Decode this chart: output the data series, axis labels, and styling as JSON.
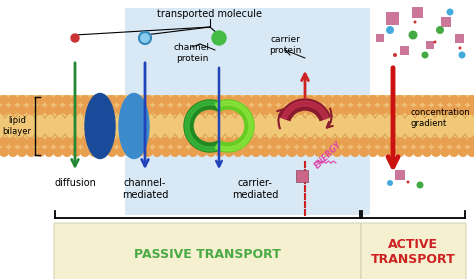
{
  "bg_color": "#ffffff",
  "passive_bg": "#c8dff0",
  "passive_box_color": "#f5f0d0",
  "active_box_color": "#f5f0d0",
  "passive_text_color": "#4aaa44",
  "active_text_color": "#cc2222",
  "membrane_tan": "#f0c07a",
  "membrane_orange": "#e89040",
  "membrane_mid": "#f5d090",
  "lipid_bilayer_label": "lipid\nbilayer",
  "transported_molecule_label": "transported molecule",
  "channel_protein_label": "channel\nprotein",
  "carrier_protein_label": "carrier\nprotein",
  "diffusion_label": "diffusion",
  "channel_mediated_label": "channel-\nmediated",
  "carrier_mediated_label": "carrier-\nmediated",
  "concentration_gradient_label": "concentration\ngradient",
  "energy_label": "ENERGY",
  "passive_transport_label": "PASSIVE TRANSPORT",
  "active_transport_label": "ACTIVE\nTRANSPORT",
  "figsize": [
    4.74,
    2.79
  ],
  "dpi": 100
}
